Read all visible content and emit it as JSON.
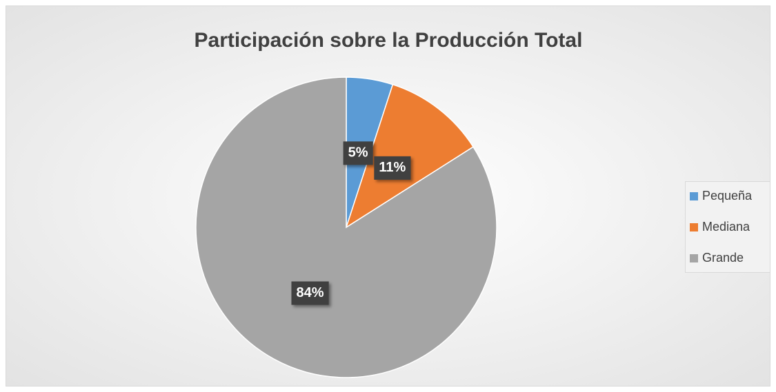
{
  "chart_data": {
    "type": "pie",
    "title": "Participación sobre la Producción Total",
    "categories": [
      "Pequeña",
      "Mediana",
      "Grande"
    ],
    "values": [
      5,
      11,
      84
    ],
    "value_labels": [
      "5%",
      "11%",
      "84%"
    ],
    "colors": [
      "#5b9bd5",
      "#ed7d31",
      "#a5a5a5"
    ],
    "legend": "right"
  }
}
